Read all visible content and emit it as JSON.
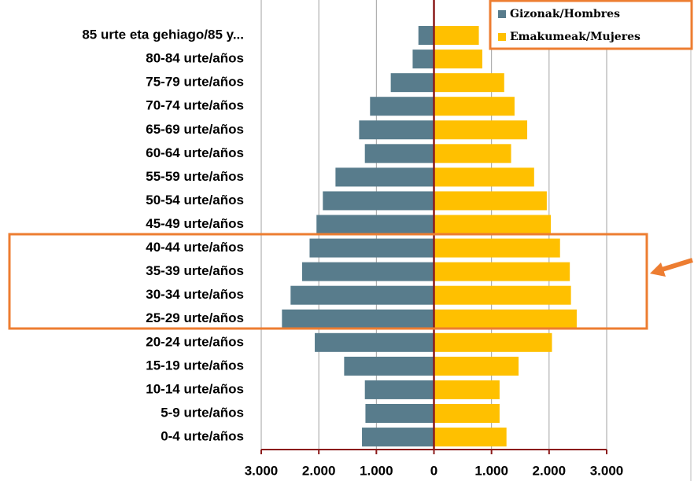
{
  "chart_data": {
    "type": "bar",
    "orientation": "horizontal",
    "categories": [
      "85 urte eta gehiago/85 y...",
      "80-84 urte/años",
      "75-79 urte/años",
      "70-74 urte/años",
      "65-69 urte/años",
      "60-64 urte/años",
      "55-59 urte/años",
      "50-54 urte/años",
      "45-49 urte/años",
      "40-44 urte/años",
      "35-39 urte/años",
      "30-34 urte/años",
      "25-29 urte/años",
      "20-24 urte/años",
      "15-19 urte/años",
      "10-14 urte/años",
      "5-9 urte/años",
      "0-4 urte/años"
    ],
    "series": [
      {
        "name": "Gizonak/Hombres",
        "color": "#587c8c",
        "values": [
          -270,
          -370,
          -750,
          -1110,
          -1300,
          -1200,
          -1710,
          -1930,
          -2040,
          -2160,
          -2290,
          -2490,
          -2640,
          -2070,
          -1560,
          -1200,
          -1190,
          -1250
        ]
      },
      {
        "name": "Emakumeak/Mujeres",
        "color": "#ffc000",
        "values": [
          780,
          840,
          1220,
          1400,
          1620,
          1340,
          1740,
          1960,
          2030,
          2190,
          2360,
          2380,
          2480,
          2050,
          1470,
          1140,
          1140,
          1260
        ]
      }
    ],
    "xlim": [
      -3000,
      3000
    ],
    "xticks": [
      {
        "value": -3000,
        "label": "3.000"
      },
      {
        "value": -2000,
        "label": "2.000"
      },
      {
        "value": -1000,
        "label": "1.000"
      },
      0,
      {
        "value": 1000,
        "label": "1.000"
      },
      {
        "value": 2000,
        "label": "2.000"
      },
      {
        "value": 3000,
        "label": "3.000"
      }
    ],
    "grid": true,
    "legend": "top-right"
  }
}
